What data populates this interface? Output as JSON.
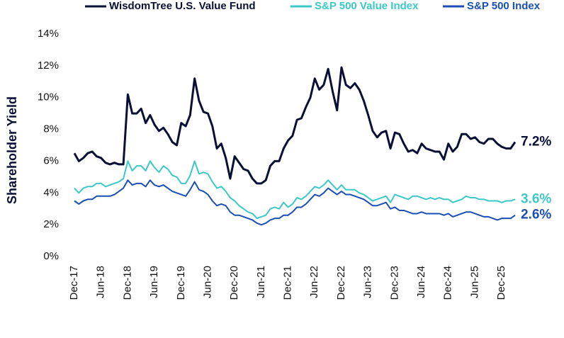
{
  "chart_data": {
    "type": "line",
    "y_label": "Shareholder Yield",
    "categories": [
      "Dec-17",
      null,
      null,
      null,
      null,
      null,
      "Jun-18",
      null,
      null,
      null,
      null,
      null,
      "Dec-18",
      null,
      null,
      null,
      null,
      null,
      "Jun-19",
      null,
      null,
      null,
      null,
      null,
      "Dec-19",
      null,
      null,
      null,
      null,
      null,
      "Jun-20",
      null,
      null,
      null,
      null,
      null,
      "Dec-20",
      null,
      null,
      null,
      null,
      null,
      "Jun-21",
      null,
      null,
      null,
      null,
      null,
      "Dec-21",
      null,
      null,
      null,
      null,
      null,
      "Jun-22",
      null,
      null,
      null,
      null,
      null,
      "Dec-22",
      null,
      null,
      null,
      null,
      null,
      "Jun-23",
      null,
      null,
      null,
      null,
      null,
      "Dec-23",
      null,
      null,
      null,
      null,
      null,
      "Jun-24",
      null,
      null,
      null,
      null,
      null,
      "Dec-24",
      null,
      null,
      null,
      null,
      null,
      "Jun-25",
      null,
      null,
      null,
      null,
      null,
      "Dec-25",
      null,
      null,
      null
    ],
    "ylim": [
      0,
      14
    ],
    "yticks": [
      {
        "value": 0,
        "label": "0%"
      },
      {
        "value": 2,
        "label": "2%"
      },
      {
        "value": 4,
        "label": "4%"
      },
      {
        "value": 6,
        "label": "6%"
      },
      {
        "value": 8,
        "label": "8%"
      },
      {
        "value": 10,
        "label": "10%"
      },
      {
        "value": 12,
        "label": "12%"
      },
      {
        "value": 14,
        "label": "14%"
      }
    ],
    "grid": false,
    "legend": "top",
    "series": [
      {
        "name": "WisdomTree U.S. Value Fund",
        "color": "#0a0f35",
        "end_label": "7.2%",
        "values": [
          6.5,
          6.0,
          6.2,
          6.5,
          6.6,
          6.3,
          6.2,
          5.9,
          5.8,
          5.9,
          5.8,
          5.8,
          10.2,
          9.0,
          9.0,
          9.3,
          8.4,
          8.9,
          8.3,
          7.9,
          8.1,
          7.7,
          7.2,
          7.0,
          8.4,
          8.2,
          8.9,
          11.2,
          9.8,
          9.1,
          9.0,
          8.2,
          6.8,
          7.1,
          6.2,
          4.9,
          6.3,
          5.9,
          5.5,
          5.4,
          4.9,
          4.6,
          4.6,
          4.8,
          5.7,
          6.0,
          6.0,
          6.8,
          7.3,
          7.6,
          8.6,
          8.7,
          9.4,
          10.0,
          11.2,
          10.5,
          10.8,
          11.8,
          10.4,
          9.2,
          11.9,
          10.8,
          10.6,
          10.9,
          10.5,
          9.8,
          8.9,
          7.9,
          7.5,
          7.8,
          7.9,
          6.8,
          7.8,
          7.7,
          7.1,
          6.6,
          6.7,
          6.5,
          7.1,
          6.8,
          6.7,
          6.6,
          6.6,
          6.1,
          7.1,
          6.6,
          6.9,
          7.7,
          7.7,
          7.4,
          7.5,
          7.2,
          7.1,
          7.4,
          7.4,
          7.1,
          6.9,
          6.8,
          6.8,
          7.2
        ]
      },
      {
        "name": "S&P 500 Value Index",
        "color": "#3cc8c8",
        "end_label": "3.6%",
        "values": [
          4.3,
          4.0,
          4.3,
          4.4,
          4.4,
          4.6,
          4.6,
          4.4,
          4.5,
          4.6,
          4.7,
          4.9,
          6.0,
          5.4,
          5.7,
          5.7,
          5.4,
          6.0,
          5.6,
          5.3,
          5.7,
          5.5,
          5.1,
          5.0,
          4.6,
          4.6,
          5.1,
          6.0,
          5.2,
          5.3,
          5.2,
          4.7,
          4.3,
          4.4,
          4.1,
          3.7,
          3.5,
          3.2,
          3.0,
          2.8,
          2.7,
          2.4,
          2.5,
          2.6,
          3.0,
          3.1,
          3.0,
          3.4,
          3.1,
          3.3,
          3.7,
          3.6,
          3.8,
          4.1,
          4.4,
          4.3,
          4.5,
          4.8,
          4.5,
          4.2,
          4.5,
          4.2,
          4.2,
          4.2,
          4.0,
          3.9,
          3.7,
          3.5,
          3.6,
          3.7,
          3.8,
          3.4,
          3.9,
          3.8,
          3.7,
          3.6,
          3.8,
          3.8,
          3.7,
          3.6,
          3.7,
          3.6,
          3.7,
          3.6,
          3.6,
          3.4,
          3.5,
          3.6,
          3.8,
          3.7,
          3.7,
          3.6,
          3.6,
          3.5,
          3.5,
          3.5,
          3.4,
          3.5,
          3.5,
          3.6
        ]
      },
      {
        "name": "S&P 500 Index",
        "color": "#1a4fb5",
        "end_label": "2.6%",
        "values": [
          3.5,
          3.3,
          3.5,
          3.6,
          3.6,
          3.8,
          3.8,
          3.8,
          3.8,
          3.9,
          4.1,
          4.3,
          4.8,
          4.5,
          4.6,
          4.6,
          4.4,
          4.8,
          4.5,
          4.4,
          4.5,
          4.3,
          4.1,
          4.0,
          3.9,
          3.8,
          4.2,
          4.7,
          4.2,
          4.1,
          3.9,
          3.5,
          3.2,
          3.3,
          3.2,
          2.8,
          2.6,
          2.6,
          2.5,
          2.4,
          2.3,
          2.1,
          2.0,
          2.1,
          2.3,
          2.4,
          2.4,
          2.6,
          2.6,
          2.8,
          3.1,
          3.1,
          3.3,
          3.6,
          3.9,
          3.8,
          4.0,
          4.3,
          4.1,
          3.9,
          4.1,
          3.9,
          3.9,
          3.8,
          3.7,
          3.6,
          3.4,
          3.2,
          3.2,
          3.3,
          3.4,
          3.0,
          3.1,
          2.9,
          2.9,
          2.8,
          2.7,
          2.7,
          2.8,
          2.7,
          2.7,
          2.7,
          2.7,
          2.6,
          2.7,
          2.5,
          2.6,
          2.7,
          2.8,
          2.8,
          2.7,
          2.6,
          2.5,
          2.5,
          2.4,
          2.3,
          2.4,
          2.4,
          2.4,
          2.6
        ]
      }
    ]
  }
}
